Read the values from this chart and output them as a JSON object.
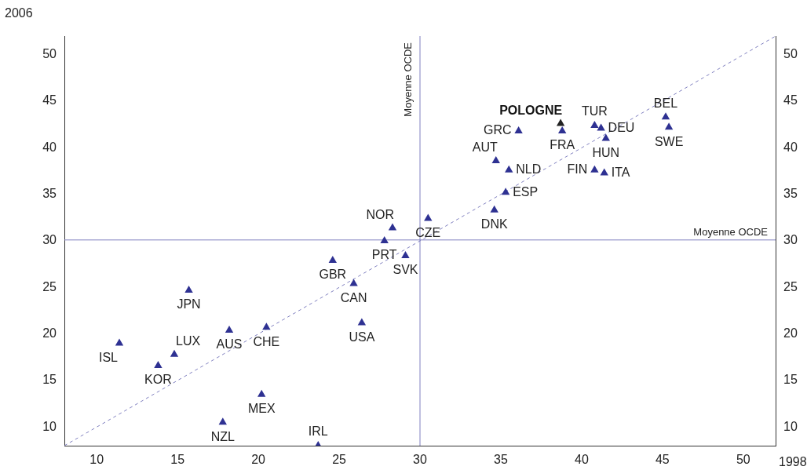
{
  "chart_data": {
    "type": "scatter",
    "xlabel": "1998",
    "ylabel": "2006",
    "xlim": [
      8,
      52
    ],
    "ylim": [
      8,
      52
    ],
    "y2lim": [
      8,
      52
    ],
    "xticks": [
      10,
      15,
      20,
      25,
      30,
      35,
      40,
      45,
      50
    ],
    "yticks": [
      10,
      15,
      20,
      25,
      30,
      35,
      40,
      45,
      50
    ],
    "y2ticks": [
      10,
      15,
      20,
      25,
      30,
      35,
      40,
      45,
      50
    ],
    "marker": "triangle",
    "grid": false,
    "legend": false,
    "series": [
      {
        "color": "#2e3192",
        "x": [
          11.4,
          14.8,
          13.8,
          15.7,
          18.2,
          20.5,
          17.8,
          20.2,
          23.7,
          24.6,
          25.9,
          26.4,
          27.8,
          28.3,
          29.1,
          30.5,
          34.6,
          35.3,
          35.5,
          34.7,
          36.1,
          38.8,
          40.8,
          41.2,
          41.5,
          40.8,
          41.4,
          45.2,
          45.4
        ],
        "values": [
          19.0,
          17.8,
          16.6,
          24.7,
          20.4,
          20.7,
          10.5,
          13.5,
          8.0,
          27.9,
          25.4,
          21.2,
          30.0,
          31.4,
          28.4,
          32.4,
          33.3,
          35.2,
          37.6,
          38.6,
          41.8,
          41.8,
          42.4,
          42.1,
          41.0,
          37.6,
          37.3,
          43.3,
          42.2
        ],
        "value_labels": [
          "ISL",
          "LUX",
          "KOR",
          "JPN",
          "AUS",
          "CHE",
          "NZL",
          "MEX",
          "IRL",
          "GBR",
          "CAN",
          "USA",
          "PRT",
          "NOR",
          "SVK",
          "CZE",
          "DNK",
          "ESP",
          "NLD",
          "AUT",
          "GRC",
          "FRA",
          "TUR",
          "DEU",
          "HUN",
          "FIN",
          "ITA",
          "BEL",
          "SWE"
        ]
      },
      {
        "color": "#222222",
        "x": [
          38.7
        ],
        "values": [
          42.6
        ],
        "value_labels": [
          "POLOGNE"
        ]
      },
      {
        "type": "line",
        "color": "#8080c0",
        "line_style": "dashed",
        "marker": "none",
        "x": [
          8,
          52
        ],
        "values": [
          8,
          52
        ]
      }
    ],
    "ref_lines": [
      {
        "axis": "x",
        "value": 30,
        "label": "Moyenne OCDE",
        "color": "#8080c0"
      },
      {
        "axis": "y",
        "value": 30.1,
        "label": "Moyenne OCDE",
        "color": "#8080c0"
      }
    ]
  }
}
